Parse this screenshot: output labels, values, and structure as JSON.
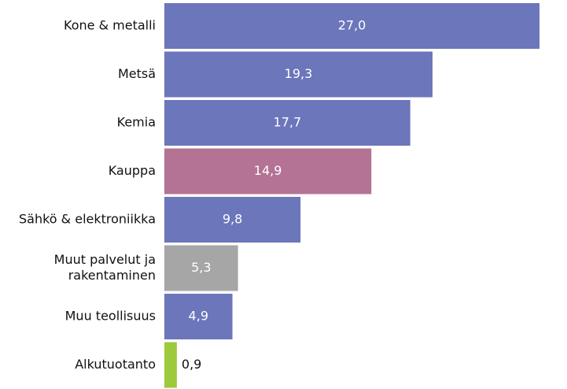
{
  "chart_data": {
    "type": "bar",
    "orientation": "horizontal",
    "categories": [
      [
        "Kone & metalli"
      ],
      [
        "Metsä"
      ],
      [
        "Kemia"
      ],
      [
        "Kauppa"
      ],
      [
        "Sähkö & elektroniikka"
      ],
      [
        "Muut palvelut ja",
        "rakentaminen"
      ],
      [
        "Muu teollisuus"
      ],
      [
        "Alkutuotanto"
      ]
    ],
    "values": [
      27.0,
      19.3,
      17.7,
      14.9,
      9.8,
      5.3,
      4.9,
      0.9
    ],
    "value_labels": [
      "27,0",
      "19,3",
      "17,7",
      "14,9",
      "9,8",
      "5,3",
      "4,9",
      "0,9"
    ],
    "colors": [
      "#6b76bb",
      "#6b76bb",
      "#6b76bb",
      "#b47394",
      "#6b76bb",
      "#a6a6a6",
      "#6b76bb",
      "#9dc93c"
    ],
    "value_label_color_inside": "#ffffff",
    "value_label_color_outside": "#111111",
    "xlim": [
      0,
      27.0
    ],
    "grid": false,
    "legend": "none"
  }
}
